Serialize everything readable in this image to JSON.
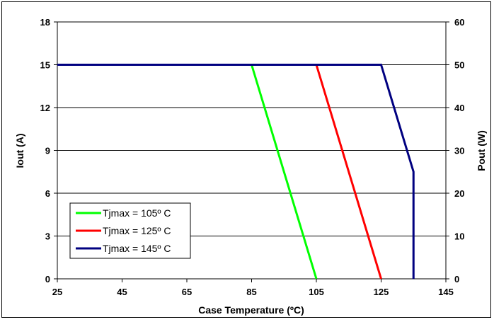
{
  "chart_data": {
    "type": "line",
    "xlabel": "Case Temperature (ºC)",
    "ylabel": "Iout (A)",
    "y2label": "Pout (W)",
    "xlim": [
      25,
      145
    ],
    "ylim": [
      0,
      18
    ],
    "y2lim": [
      0,
      60
    ],
    "xticks": [
      "25",
      "45",
      "65",
      "85",
      "105",
      "125",
      "145"
    ],
    "yticks": [
      "0",
      "3",
      "6",
      "9",
      "12",
      "15",
      "18"
    ],
    "y2ticks": [
      "0",
      "10",
      "20",
      "30",
      "40",
      "50",
      "60"
    ],
    "grid": "horizontal",
    "legend_position": "bottom-left",
    "series": [
      {
        "name": "Tjmax = 105º C",
        "color": "#00ff00",
        "points": [
          [
            25,
            15
          ],
          [
            85,
            15
          ],
          [
            105,
            0
          ]
        ]
      },
      {
        "name": "Tjmax = 125º C",
        "color": "#ff0000",
        "points": [
          [
            25,
            15
          ],
          [
            105,
            15
          ],
          [
            125,
            0
          ]
        ]
      },
      {
        "name": "Tjmax = 145º C",
        "color": "#000080",
        "points": [
          [
            25,
            15
          ],
          [
            125,
            15
          ],
          [
            135,
            7.5
          ],
          [
            135,
            0
          ]
        ]
      }
    ]
  }
}
